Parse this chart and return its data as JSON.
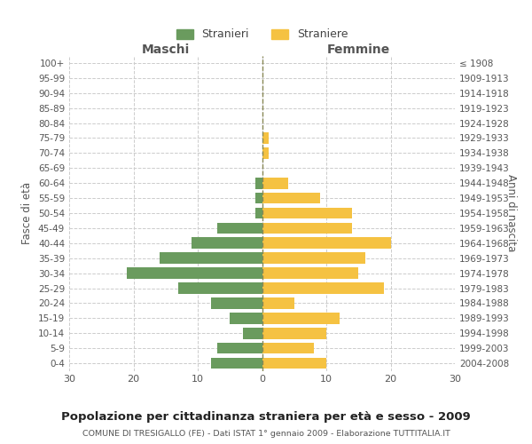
{
  "age_groups": [
    "0-4",
    "5-9",
    "10-14",
    "15-19",
    "20-24",
    "25-29",
    "30-34",
    "35-39",
    "40-44",
    "45-49",
    "50-54",
    "55-59",
    "60-64",
    "65-69",
    "70-74",
    "75-79",
    "80-84",
    "85-89",
    "90-94",
    "95-99",
    "100+"
  ],
  "birth_years": [
    "2004-2008",
    "1999-2003",
    "1994-1998",
    "1989-1993",
    "1984-1988",
    "1979-1983",
    "1974-1978",
    "1969-1973",
    "1964-1968",
    "1959-1963",
    "1954-1958",
    "1949-1953",
    "1944-1948",
    "1939-1943",
    "1934-1938",
    "1929-1933",
    "1924-1928",
    "1919-1923",
    "1914-1918",
    "1909-1913",
    "≤ 1908"
  ],
  "males": [
    8,
    7,
    3,
    5,
    8,
    13,
    21,
    16,
    11,
    7,
    1,
    1,
    1,
    0,
    0,
    0,
    0,
    0,
    0,
    0,
    0
  ],
  "females": [
    10,
    8,
    10,
    12,
    5,
    19,
    15,
    16,
    20,
    14,
    14,
    9,
    4,
    0,
    1,
    1,
    0,
    0,
    0,
    0,
    0
  ],
  "male_color": "#6a9b5e",
  "female_color": "#f5c242",
  "title": "Popolazione per cittadinanza straniera per età e sesso - 2009",
  "subtitle": "COMUNE DI TRESIGALLO (FE) - Dati ISTAT 1° gennaio 2009 - Elaborazione TUTTITALIA.IT",
  "xlabel_left": "Maschi",
  "xlabel_right": "Femmine",
  "ylabel_left": "Fasce di età",
  "ylabel_right": "Anni di nascita",
  "legend_males": "Stranieri",
  "legend_females": "Straniere",
  "xlim": 30,
  "background_color": "#ffffff",
  "grid_color": "#cccccc"
}
